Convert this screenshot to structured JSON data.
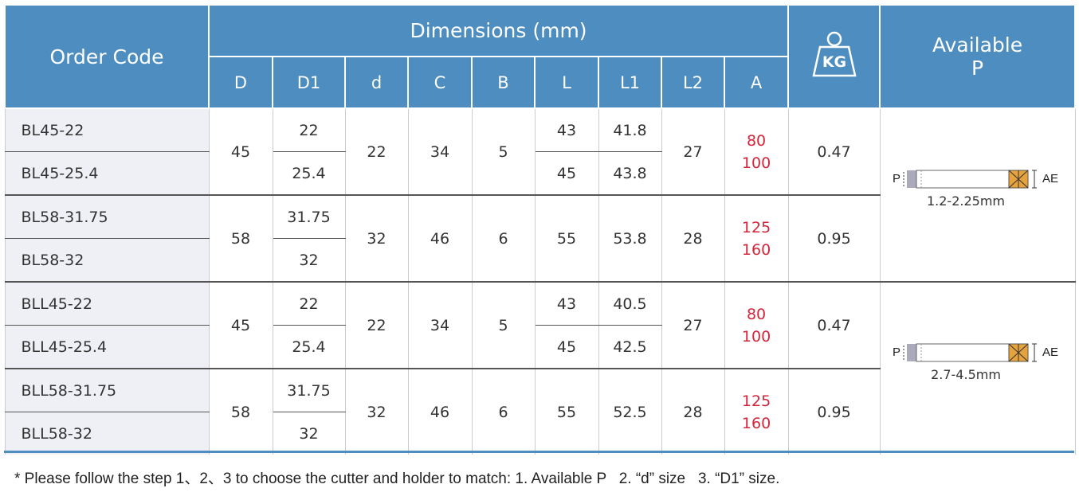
{
  "header": {
    "order_code": "Order Code",
    "dimensions": "Dimensions (mm)",
    "columns": [
      "D",
      "D1",
      "d",
      "C",
      "B",
      "L",
      "L1",
      "L2",
      "A"
    ],
    "weight_icon": "KG",
    "available_p": "Available P"
  },
  "groups": [
    {
      "codes": [
        "BL45-22",
        "BL45-25.4"
      ],
      "D": "45",
      "D1": [
        "22",
        "25.4"
      ],
      "d": "22",
      "C": "34",
      "B": "5",
      "L": [
        "43",
        "45"
      ],
      "L1": [
        "41.8",
        "43.8"
      ],
      "L2": "27",
      "A": [
        "80",
        "100"
      ],
      "kg": "0.47"
    },
    {
      "codes": [
        "BL58-31.75",
        "BL58-32"
      ],
      "D": "58",
      "D1": [
        "31.75",
        "32"
      ],
      "d": "32",
      "C": "46",
      "B": "6",
      "L": [
        "55"
      ],
      "L1": [
        "53.8"
      ],
      "L2": "28",
      "A": [
        "125",
        "160"
      ],
      "kg": "0.95"
    },
    {
      "codes": [
        "BLL45-22",
        "BLL45-25.4"
      ],
      "D": "45",
      "D1": [
        "22",
        "25.4"
      ],
      "d": "22",
      "C": "34",
      "B": "5",
      "L": [
        "43",
        "45"
      ],
      "L1": [
        "40.5",
        "42.5"
      ],
      "L2": "27",
      "A": [
        "80",
        "100"
      ],
      "kg": "0.47"
    },
    {
      "codes": [
        "BLL58-31.75",
        "BLL58-32"
      ],
      "D": "58",
      "D1": [
        "31.75",
        "32"
      ],
      "d": "32",
      "C": "46",
      "B": "6",
      "L": [
        "55"
      ],
      "L1": [
        "52.5"
      ],
      "L2": "28",
      "A": [
        "125",
        "160"
      ],
      "kg": "0.95"
    }
  ],
  "diagrams": [
    {
      "p_label": "P",
      "ae_label": "AE",
      "range": "1.2-2.25mm"
    },
    {
      "p_label": "P",
      "ae_label": "AE",
      "range": "2.7-4.5mm"
    }
  ],
  "footnote": "* Please follow the step 1、2、3 to choose the cutter and holder to match: 1. Available P   2. “d” size   3. “D1” size."
}
